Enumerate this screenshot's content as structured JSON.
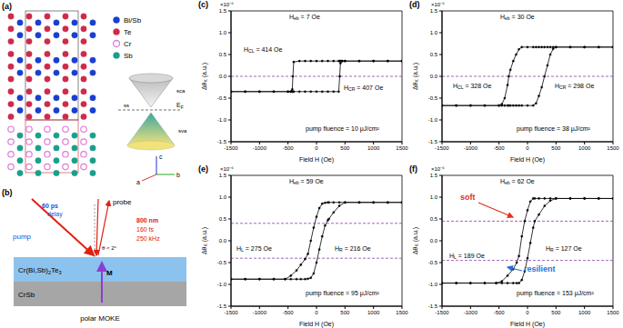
{
  "chart_data": [
    {
      "type": "line",
      "panel": "(c)",
      "x_label": "Field H (Oe)",
      "y_label": [
        {
          "t": "Δθ"
        },
        {
          "t": "K",
          "sub": true
        },
        {
          "t": " (a.u.)"
        }
      ],
      "y_multiplier": "×10⁻⁶",
      "xlim": [
        -1500,
        1500
      ],
      "xticks": [
        -1500,
        -1000,
        -500,
        0,
        500,
        1000,
        1500
      ],
      "ylim": [
        -1.5,
        1.5
      ],
      "yticks": [
        -1.5,
        {
          "value": -1,
          "label": "-1.0"
        },
        -0.5,
        {
          "value": 0,
          "label": "0.0"
        },
        0.5,
        {
          "value": 1,
          "label": "1.0"
        },
        1.5
      ],
      "x": [
        -1500,
        -1250,
        -1000,
        -750,
        -500,
        -450,
        -425,
        -414,
        -400,
        -300,
        -200,
        -100,
        0,
        100,
        200,
        300,
        390,
        407,
        420,
        450,
        500,
        750,
        1000,
        1250,
        1500
      ],
      "series": [
        {
          "color": "#000000",
          "marker": "circle",
          "values": [
            -0.35,
            -0.35,
            -0.35,
            -0.35,
            -0.35,
            -0.35,
            -0.3,
            0,
            0.33,
            0.35,
            0.35,
            0.35,
            0.35,
            0.35,
            0.35,
            0.35,
            0.35,
            0.35,
            0.35,
            0.35,
            0.35,
            0.35,
            0.35,
            0.35,
            0.35
          ]
        },
        {
          "color": "#000000",
          "marker": "circle",
          "values": [
            -0.35,
            -0.35,
            -0.35,
            -0.35,
            -0.35,
            -0.35,
            -0.35,
            -0.35,
            -0.35,
            -0.35,
            -0.35,
            -0.35,
            -0.35,
            -0.35,
            -0.35,
            -0.35,
            -0.35,
            0,
            0.3,
            0.35,
            0.35,
            0.35,
            0.35,
            0.35,
            0.35
          ]
        }
      ],
      "reference_lines": [
        {
          "value": 0,
          "color": "#8a3fa8",
          "line_style": "dashed"
        }
      ],
      "annotations": [
        {
          "parts": [
            {
              "t": "H"
            },
            {
              "t": "eb",
              "sub": true
            },
            {
              "t": " = 7 Oe"
            }
          ]
        },
        {
          "parts": [
            {
              "t": "H"
            },
            {
              "t": "CL",
              "sub": true
            },
            {
              "t": " = 414 Oe"
            }
          ]
        },
        {
          "parts": [
            {
              "t": "H"
            },
            {
              "t": "CR",
              "sub": true
            },
            {
              "t": " = 407 Oe"
            }
          ]
        },
        {
          "parts": [
            {
              "t": "pump fluence = 10 μJ/cm²"
            }
          ]
        }
      ]
    },
    {
      "type": "line",
      "panel": "(d)",
      "x_label": "Field H (Oe)",
      "y_label": [
        {
          "t": "Δθ"
        },
        {
          "t": "K",
          "sub": true
        },
        {
          "t": " (a.u.)"
        }
      ],
      "y_multiplier": "×10⁻⁶",
      "xlim": [
        -1500,
        1500
      ],
      "xticks": [
        -1500,
        -1000,
        -500,
        0,
        500,
        1000,
        1500
      ],
      "ylim": [
        -1.5,
        1.5
      ],
      "yticks": [
        -1.5,
        {
          "value": -1,
          "label": "-1.0"
        },
        -0.5,
        {
          "value": 0,
          "label": "0.0"
        },
        0.5,
        {
          "value": 1,
          "label": "1.0"
        },
        1.5
      ],
      "x": [
        -1500,
        -1250,
        -1000,
        -750,
        -500,
        -450,
        -400,
        -350,
        -328,
        -300,
        -250,
        -200,
        -150,
        -100,
        0,
        100,
        150,
        200,
        250,
        298,
        350,
        400,
        450,
        500,
        750,
        1000,
        1250,
        1500
      ],
      "series": [
        {
          "color": "#000000",
          "marker": "circle",
          "values": [
            -0.67,
            -0.67,
            -0.67,
            -0.67,
            -0.67,
            -0.64,
            -0.5,
            -0.2,
            0,
            0.15,
            0.35,
            0.5,
            0.62,
            0.67,
            0.67,
            0.67,
            0.67,
            0.67,
            0.67,
            0.67,
            0.67,
            0.67,
            0.67,
            0.67,
            0.67,
            0.67,
            0.67,
            0.67
          ]
        },
        {
          "color": "#000000",
          "marker": "circle",
          "values": [
            -0.67,
            -0.67,
            -0.67,
            -0.67,
            -0.67,
            -0.67,
            -0.67,
            -0.67,
            -0.67,
            -0.67,
            -0.67,
            -0.67,
            -0.67,
            -0.67,
            -0.67,
            -0.67,
            -0.62,
            -0.45,
            -0.25,
            0,
            0.25,
            0.5,
            0.63,
            0.67,
            0.67,
            0.67,
            0.67,
            0.67
          ]
        }
      ],
      "reference_lines": [
        {
          "value": 0,
          "color": "#8a3fa8",
          "line_style": "dashed"
        }
      ],
      "annotations": [
        {
          "parts": [
            {
              "t": "H"
            },
            {
              "t": "eb",
              "sub": true
            },
            {
              "t": " = 30 Oe"
            }
          ]
        },
        {
          "parts": [
            {
              "t": "H"
            },
            {
              "t": "CL",
              "sub": true
            },
            {
              "t": " = 328 Oe"
            }
          ]
        },
        {
          "parts": [
            {
              "t": "H"
            },
            {
              "t": "CR",
              "sub": true
            },
            {
              "t": " = 298 Oe"
            }
          ]
        },
        {
          "parts": [
            {
              "t": "pump fluence = 38 μJ/cm²"
            }
          ]
        }
      ]
    },
    {
      "type": "line",
      "panel": "(e)",
      "x_label": "Field H (Oe)",
      "y_label": [
        {
          "t": "Δθ"
        },
        {
          "t": "K",
          "sub": true
        },
        {
          "t": " (a.u.)"
        }
      ],
      "y_multiplier": "×10⁻⁶",
      "xlim": [
        -1500,
        1500
      ],
      "xticks": [
        -1500,
        -1000,
        -500,
        0,
        500,
        1000,
        1500
      ],
      "ylim": [
        -1.5,
        1.5
      ],
      "yticks": [
        -1.5,
        {
          "value": -1,
          "label": "-1.0"
        },
        -0.5,
        {
          "value": 0,
          "label": "0.0"
        },
        0.5,
        {
          "value": 1,
          "label": "1.0"
        },
        1.5
      ],
      "x": [
        -1500,
        -1250,
        -1000,
        -750,
        -550,
        -450,
        -350,
        -275,
        -200,
        -150,
        -100,
        -50,
        0,
        50,
        100,
        150,
        200,
        216,
        300,
        400,
        500,
        750,
        1000,
        1250,
        1500
      ],
      "series": [
        {
          "color": "#000000",
          "marker": "circle",
          "values": [
            -0.88,
            -0.88,
            -0.88,
            -0.88,
            -0.88,
            -0.8,
            -0.68,
            -0.55,
            -0.42,
            -0.3,
            0,
            0.3,
            0.55,
            0.75,
            0.85,
            0.87,
            0.88,
            0.88,
            0.88,
            0.88,
            0.88,
            0.88,
            0.88,
            0.88,
            0.88
          ]
        },
        {
          "color": "#000000",
          "marker": "circle",
          "values": [
            -0.88,
            -0.88,
            -0.88,
            -0.88,
            -0.88,
            -0.88,
            -0.88,
            -0.88,
            -0.88,
            -0.87,
            -0.85,
            -0.75,
            -0.5,
            -0.2,
            0.1,
            0.35,
            0.47,
            0.5,
            0.65,
            0.8,
            0.88,
            0.88,
            0.88,
            0.88,
            0.88
          ]
        }
      ],
      "reference_lines": [
        {
          "value": 0.4,
          "color": "#8a3fa8",
          "line_style": "dashed"
        },
        {
          "value": -0.4,
          "color": "#8a3fa8",
          "line_style": "dashed"
        }
      ],
      "annotations": [
        {
          "parts": [
            {
              "t": "H"
            },
            {
              "t": "eb",
              "sub": true
            },
            {
              "t": " = 59 Oe"
            }
          ]
        },
        {
          "parts": [
            {
              "t": "H"
            },
            {
              "t": "L",
              "sub": true
            },
            {
              "t": " = 275 Oe"
            }
          ]
        },
        {
          "parts": [
            {
              "t": "H"
            },
            {
              "t": "R",
              "sub": true
            },
            {
              "t": " = 216 Oe"
            }
          ]
        },
        {
          "parts": [
            {
              "t": "pump fluence = 95 μJ/cm²"
            }
          ]
        }
      ]
    },
    {
      "type": "line",
      "panel": "(f)",
      "x_label": "Field H (Oe)",
      "y_label": [
        {
          "t": "Δθ"
        },
        {
          "t": "K",
          "sub": true
        },
        {
          "t": " (a.u.)"
        }
      ],
      "y_multiplier": "×10⁻⁶",
      "xlim": [
        -1500,
        1500
      ],
      "xticks": [
        -1500,
        -1000,
        -500,
        0,
        500,
        1000,
        1500
      ],
      "ylim": [
        -1.5,
        1.5
      ],
      "yticks": [
        -1.5,
        {
          "value": -1,
          "label": "-1.0"
        },
        -0.5,
        {
          "value": 0,
          "label": "0.0"
        },
        0.5,
        {
          "value": 1,
          "label": "1.0"
        },
        1.5
      ],
      "x": [
        -1500,
        -1250,
        -1000,
        -750,
        -550,
        -450,
        -350,
        -250,
        -189,
        -150,
        -100,
        -50,
        0,
        50,
        100,
        127,
        200,
        300,
        400,
        500,
        750,
        1000,
        1250,
        1500
      ],
      "series": [
        {
          "color": "#000000",
          "marker": "circle",
          "values": [
            -0.97,
            -0.97,
            -0.97,
            -0.97,
            -0.97,
            -0.93,
            -0.8,
            -0.65,
            -0.5,
            -0.35,
            0.1,
            0.45,
            0.7,
            0.9,
            0.97,
            0.97,
            0.97,
            0.97,
            0.97,
            0.97,
            0.97,
            0.97,
            0.97,
            0.97
          ]
        },
        {
          "color": "#000000",
          "marker": "circle",
          "values": [
            -0.97,
            -0.97,
            -0.97,
            -0.97,
            -0.97,
            -0.97,
            -0.97,
            -0.97,
            -0.97,
            -0.97,
            -0.9,
            -0.7,
            -0.4,
            -0.05,
            0.3,
            0.45,
            0.6,
            0.8,
            0.92,
            0.97,
            0.97,
            0.97,
            0.97,
            0.97
          ]
        }
      ],
      "reference_lines": [
        {
          "value": 0.45,
          "color": "#8a3fa8",
          "line_style": "dashed"
        },
        {
          "value": -0.45,
          "color": "#8a3fa8",
          "line_style": "dashed"
        }
      ],
      "annotations": [
        {
          "parts": [
            {
              "t": "H"
            },
            {
              "t": "eb",
              "sub": true
            },
            {
              "t": " = 62 Oe"
            }
          ]
        },
        {
          "parts": [
            {
              "t": "H"
            },
            {
              "t": "L",
              "sub": true
            },
            {
              "t": " = 189 Oe"
            }
          ]
        },
        {
          "parts": [
            {
              "t": "H"
            },
            {
              "t": "R",
              "sub": true
            },
            {
              "t": " = 127 Oe"
            }
          ]
        },
        {
          "parts": [
            {
              "t": "pump fluence = 153 μJ/cm²"
            }
          ]
        },
        {
          "parts": [
            {
              "t": "soft"
            }
          ],
          "color": "#e0301e"
        },
        {
          "parts": [
            {
              "t": "resilient"
            }
          ],
          "color": "#2a6fd6"
        }
      ]
    }
  ],
  "diagrams": {
    "a": {
      "label": "(a)",
      "legend": [
        {
          "name": "Bi/Sb",
          "color": "#1a3fd0"
        },
        {
          "name": "Te",
          "color": "#d02a4a"
        },
        {
          "name": "Cr",
          "color": "#e07ad8"
        },
        {
          "name": "Sb",
          "color": "#1aa08a"
        }
      ],
      "bands": {
        "upper": "sca",
        "surface": "ss",
        "fermi": [
          {
            "t": "E"
          },
          {
            "t": "F",
            "sub": true
          }
        ],
        "lower": "sva"
      },
      "axes": [
        "a",
        "b",
        "c"
      ]
    },
    "b": {
      "label": "(b)",
      "pump": "pump",
      "delay": [
        "60 ps",
        "delay"
      ],
      "probe": "probe",
      "laser": [
        "800 nm",
        "160 fs",
        "250 kHz"
      ],
      "angle": "θ < 2°",
      "magnetization": "M",
      "film": [
        {
          "t": "Cr(Bi,Sb)"
        },
        {
          "t": "2",
          "sub": true
        },
        {
          "t": "Te"
        },
        {
          "t": "3",
          "sub": true
        }
      ],
      "substrate": "CrSb",
      "technique": "polar MOKE"
    }
  }
}
